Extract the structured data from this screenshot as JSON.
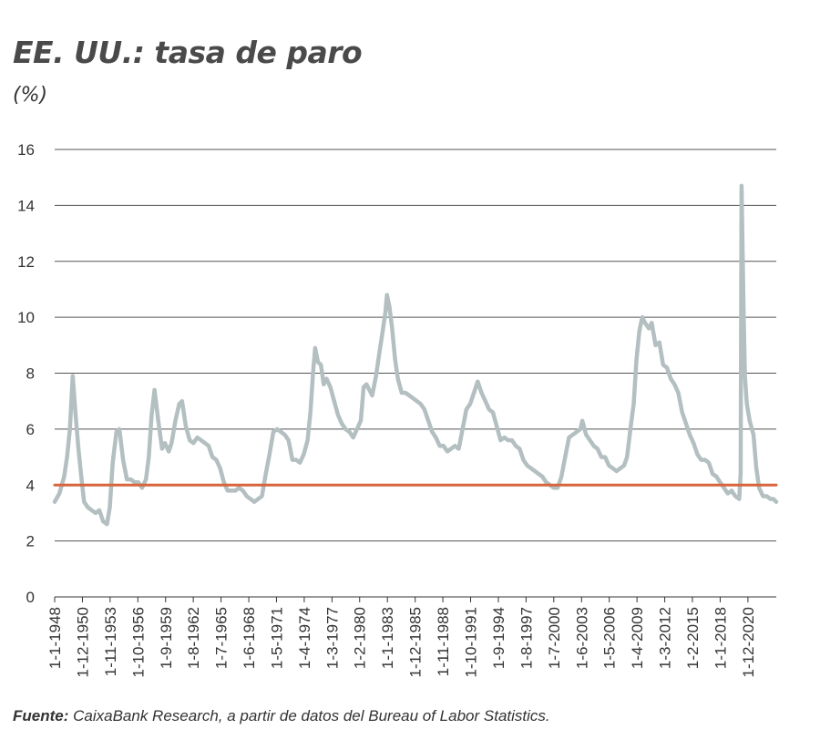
{
  "chart_data": {
    "type": "line",
    "title": "EE. UU.: tasa de paro",
    "ylabel": "(%)",
    "ylim": [
      0,
      16
    ],
    "yticks": [
      0,
      2,
      4,
      6,
      8,
      10,
      12,
      14,
      16
    ],
    "grid": true,
    "x_range": [
      1948.0,
      2023.9
    ],
    "xticks": [
      {
        "year": 1948.0,
        "label": "1-1-1948"
      },
      {
        "year": 1950.92,
        "label": "1-12-1950"
      },
      {
        "year": 1953.83,
        "label": "1-11-1953"
      },
      {
        "year": 1956.75,
        "label": "1-10-1956"
      },
      {
        "year": 1959.67,
        "label": "1-9-1959"
      },
      {
        "year": 1962.58,
        "label": "1-8-1962"
      },
      {
        "year": 1965.5,
        "label": "1-7-1965"
      },
      {
        "year": 1968.42,
        "label": "1-6-1968"
      },
      {
        "year": 1971.33,
        "label": "1-5-1971"
      },
      {
        "year": 1974.25,
        "label": "1-4-1974"
      },
      {
        "year": 1977.17,
        "label": "1-3-1977"
      },
      {
        "year": 1980.08,
        "label": "1-2-1980"
      },
      {
        "year": 1983.0,
        "label": "1-1-1983"
      },
      {
        "year": 1985.92,
        "label": "1-12-1985"
      },
      {
        "year": 1988.83,
        "label": "1-11-1988"
      },
      {
        "year": 1991.75,
        "label": "1-10-1991"
      },
      {
        "year": 1994.67,
        "label": "1-9-1994"
      },
      {
        "year": 1997.58,
        "label": "1-8-1997"
      },
      {
        "year": 2000.5,
        "label": "1-7-2000"
      },
      {
        "year": 2003.42,
        "label": "1-6-2003"
      },
      {
        "year": 2006.33,
        "label": "1-5-2006"
      },
      {
        "year": 2009.25,
        "label": "1-4-2009"
      },
      {
        "year": 2012.17,
        "label": "1-3-2012"
      },
      {
        "year": 2015.08,
        "label": "1-2-2015"
      },
      {
        "year": 2018.0,
        "label": "1-1-2018"
      },
      {
        "year": 2020.92,
        "label": "1-12-2020"
      }
    ],
    "series": [
      {
        "name": "Tasa de paro",
        "color": "#b3bfc0",
        "points": [
          [
            1948.0,
            3.4
          ],
          [
            1948.5,
            3.7
          ],
          [
            1949.0,
            4.3
          ],
          [
            1949.3,
            5.0
          ],
          [
            1949.6,
            6.0
          ],
          [
            1949.9,
            7.9
          ],
          [
            1950.2,
            6.5
          ],
          [
            1950.5,
            5.3
          ],
          [
            1950.8,
            4.3
          ],
          [
            1951.1,
            3.4
          ],
          [
            1951.5,
            3.2
          ],
          [
            1951.9,
            3.1
          ],
          [
            1952.3,
            3.0
          ],
          [
            1952.7,
            3.1
          ],
          [
            1953.1,
            2.7
          ],
          [
            1953.5,
            2.6
          ],
          [
            1953.8,
            3.2
          ],
          [
            1954.1,
            4.8
          ],
          [
            1954.5,
            5.9
          ],
          [
            1954.8,
            6.0
          ],
          [
            1955.2,
            4.9
          ],
          [
            1955.6,
            4.2
          ],
          [
            1956.0,
            4.2
          ],
          [
            1956.4,
            4.1
          ],
          [
            1956.8,
            4.1
          ],
          [
            1957.2,
            3.9
          ],
          [
            1957.6,
            4.2
          ],
          [
            1957.9,
            5.0
          ],
          [
            1958.2,
            6.5
          ],
          [
            1958.5,
            7.4
          ],
          [
            1958.9,
            6.3
          ],
          [
            1959.3,
            5.3
          ],
          [
            1959.6,
            5.5
          ],
          [
            1960.0,
            5.2
          ],
          [
            1960.3,
            5.5
          ],
          [
            1960.7,
            6.3
          ],
          [
            1961.1,
            6.9
          ],
          [
            1961.4,
            7.0
          ],
          [
            1961.8,
            6.1
          ],
          [
            1962.2,
            5.6
          ],
          [
            1962.6,
            5.5
          ],
          [
            1963.0,
            5.7
          ],
          [
            1963.4,
            5.6
          ],
          [
            1963.8,
            5.5
          ],
          [
            1964.2,
            5.4
          ],
          [
            1964.6,
            5.0
          ],
          [
            1965.0,
            4.9
          ],
          [
            1965.4,
            4.6
          ],
          [
            1965.8,
            4.1
          ],
          [
            1966.2,
            3.8
          ],
          [
            1966.6,
            3.8
          ],
          [
            1967.0,
            3.8
          ],
          [
            1967.4,
            3.9
          ],
          [
            1967.8,
            3.8
          ],
          [
            1968.2,
            3.6
          ],
          [
            1968.6,
            3.5
          ],
          [
            1969.0,
            3.4
          ],
          [
            1969.4,
            3.5
          ],
          [
            1969.8,
            3.6
          ],
          [
            1970.2,
            4.4
          ],
          [
            1970.6,
            5.1
          ],
          [
            1971.0,
            5.9
          ],
          [
            1971.4,
            6.0
          ],
          [
            1971.8,
            5.9
          ],
          [
            1972.2,
            5.8
          ],
          [
            1972.6,
            5.6
          ],
          [
            1973.0,
            4.9
          ],
          [
            1973.4,
            4.9
          ],
          [
            1973.8,
            4.8
          ],
          [
            1974.2,
            5.1
          ],
          [
            1974.6,
            5.6
          ],
          [
            1974.9,
            6.6
          ],
          [
            1975.2,
            8.1
          ],
          [
            1975.4,
            8.9
          ],
          [
            1975.7,
            8.4
          ],
          [
            1976.0,
            8.3
          ],
          [
            1976.3,
            7.6
          ],
          [
            1976.6,
            7.8
          ],
          [
            1977.0,
            7.5
          ],
          [
            1977.4,
            7.0
          ],
          [
            1977.8,
            6.5
          ],
          [
            1978.2,
            6.2
          ],
          [
            1978.6,
            6.0
          ],
          [
            1979.0,
            5.9
          ],
          [
            1979.4,
            5.7
          ],
          [
            1979.8,
            6.0
          ],
          [
            1980.2,
            6.3
          ],
          [
            1980.5,
            7.5
          ],
          [
            1980.8,
            7.6
          ],
          [
            1981.1,
            7.4
          ],
          [
            1981.4,
            7.2
          ],
          [
            1981.8,
            7.9
          ],
          [
            1982.1,
            8.6
          ],
          [
            1982.5,
            9.5
          ],
          [
            1982.8,
            10.2
          ],
          [
            1982.95,
            10.8
          ],
          [
            1983.2,
            10.4
          ],
          [
            1983.5,
            9.6
          ],
          [
            1983.8,
            8.5
          ],
          [
            1984.1,
            7.8
          ],
          [
            1984.5,
            7.3
          ],
          [
            1984.9,
            7.3
          ],
          [
            1985.3,
            7.2
          ],
          [
            1985.7,
            7.1
          ],
          [
            1986.1,
            7.0
          ],
          [
            1986.5,
            6.9
          ],
          [
            1986.9,
            6.7
          ],
          [
            1987.3,
            6.3
          ],
          [
            1987.7,
            5.9
          ],
          [
            1988.1,
            5.7
          ],
          [
            1988.5,
            5.4
          ],
          [
            1988.9,
            5.4
          ],
          [
            1989.3,
            5.2
          ],
          [
            1989.7,
            5.3
          ],
          [
            1990.1,
            5.4
          ],
          [
            1990.5,
            5.3
          ],
          [
            1990.9,
            6.0
          ],
          [
            1991.3,
            6.7
          ],
          [
            1991.7,
            6.9
          ],
          [
            1992.1,
            7.3
          ],
          [
            1992.5,
            7.7
          ],
          [
            1992.9,
            7.3
          ],
          [
            1993.3,
            7.0
          ],
          [
            1993.7,
            6.7
          ],
          [
            1994.1,
            6.6
          ],
          [
            1994.5,
            6.1
          ],
          [
            1994.9,
            5.6
          ],
          [
            1995.3,
            5.7
          ],
          [
            1995.7,
            5.6
          ],
          [
            1996.1,
            5.6
          ],
          [
            1996.5,
            5.4
          ],
          [
            1996.9,
            5.3
          ],
          [
            1997.3,
            4.9
          ],
          [
            1997.7,
            4.7
          ],
          [
            1998.1,
            4.6
          ],
          [
            1998.5,
            4.5
          ],
          [
            1998.9,
            4.4
          ],
          [
            1999.3,
            4.3
          ],
          [
            1999.7,
            4.1
          ],
          [
            2000.1,
            4.0
          ],
          [
            2000.5,
            3.9
          ],
          [
            2000.9,
            3.9
          ],
          [
            2001.3,
            4.3
          ],
          [
            2001.7,
            5.0
          ],
          [
            2002.1,
            5.7
          ],
          [
            2002.5,
            5.8
          ],
          [
            2002.9,
            5.9
          ],
          [
            2003.3,
            6.0
          ],
          [
            2003.5,
            6.3
          ],
          [
            2003.9,
            5.8
          ],
          [
            2004.3,
            5.6
          ],
          [
            2004.7,
            5.4
          ],
          [
            2005.1,
            5.3
          ],
          [
            2005.5,
            5.0
          ],
          [
            2005.9,
            5.0
          ],
          [
            2006.3,
            4.7
          ],
          [
            2006.7,
            4.6
          ],
          [
            2007.1,
            4.5
          ],
          [
            2007.5,
            4.6
          ],
          [
            2007.9,
            4.7
          ],
          [
            2008.2,
            5.0
          ],
          [
            2008.6,
            6.1
          ],
          [
            2008.9,
            6.9
          ],
          [
            2009.2,
            8.5
          ],
          [
            2009.5,
            9.5
          ],
          [
            2009.8,
            10.0
          ],
          [
            2010.1,
            9.8
          ],
          [
            2010.5,
            9.6
          ],
          [
            2010.8,
            9.8
          ],
          [
            2011.2,
            9.0
          ],
          [
            2011.6,
            9.1
          ],
          [
            2012.0,
            8.3
          ],
          [
            2012.4,
            8.2
          ],
          [
            2012.8,
            7.8
          ],
          [
            2013.2,
            7.6
          ],
          [
            2013.6,
            7.3
          ],
          [
            2014.0,
            6.6
          ],
          [
            2014.4,
            6.2
          ],
          [
            2014.8,
            5.8
          ],
          [
            2015.2,
            5.5
          ],
          [
            2015.6,
            5.1
          ],
          [
            2016.0,
            4.9
          ],
          [
            2016.4,
            4.9
          ],
          [
            2016.8,
            4.8
          ],
          [
            2017.2,
            4.4
          ],
          [
            2017.6,
            4.3
          ],
          [
            2018.0,
            4.1
          ],
          [
            2018.4,
            3.9
          ],
          [
            2018.8,
            3.7
          ],
          [
            2019.2,
            3.8
          ],
          [
            2019.6,
            3.6
          ],
          [
            2020.0,
            3.5
          ],
          [
            2020.15,
            4.4
          ],
          [
            2020.25,
            14.7
          ],
          [
            2020.45,
            10.5
          ],
          [
            2020.6,
            7.9
          ],
          [
            2020.8,
            6.9
          ],
          [
            2021.1,
            6.3
          ],
          [
            2021.5,
            5.8
          ],
          [
            2021.8,
            4.6
          ],
          [
            2022.1,
            3.9
          ],
          [
            2022.5,
            3.6
          ],
          [
            2022.9,
            3.6
          ],
          [
            2023.3,
            3.5
          ],
          [
            2023.6,
            3.5
          ],
          [
            2023.9,
            3.4
          ]
        ]
      },
      {
        "name": "Referencia 4%",
        "color": "#d8643e",
        "points": [
          [
            1948.0,
            4.0
          ],
          [
            2023.9,
            4.0
          ]
        ]
      }
    ],
    "source_label": "Fuente:",
    "source_text": " CaixaBank Research, a partir de datos del Bureau of Labor Statistics."
  }
}
